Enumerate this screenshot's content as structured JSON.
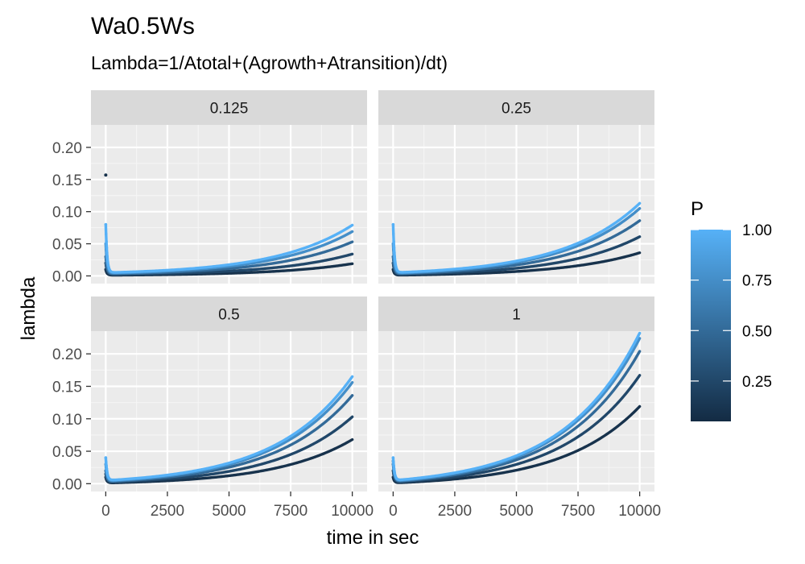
{
  "chart_data": {
    "type": "scatter",
    "title": "Wa0.5Ws",
    "subtitle": "Lambda=1/Atotal+(Agrowth+Atransition)/dt)",
    "xlabel": "time in sec",
    "ylabel": "lambda",
    "xlim": [
      -600,
      10600
    ],
    "ylim": [
      -0.012,
      0.235
    ],
    "x_ticks": [
      0,
      2500,
      5000,
      7500,
      10000
    ],
    "x_tick_labels": [
      "0",
      "2500",
      "5000",
      "7500",
      "10000"
    ],
    "y_ticks": [
      0,
      0.05,
      0.1,
      0.15,
      0.2
    ],
    "y_tick_labels": [
      "0.00",
      "0.05",
      "0.10",
      "0.15",
      "0.20"
    ],
    "grid": true,
    "legend": {
      "title": "P",
      "position": "right",
      "type": "colorbar",
      "ticks": [
        0.25,
        0.5,
        0.75,
        1.0
      ],
      "tick_labels": [
        "0.25",
        "0.50",
        "0.75",
        "1.00"
      ],
      "range": [
        0.05,
        1.0
      ],
      "low_color": "#132B43",
      "high_color": "#56B1F7"
    },
    "p_levels": [
      0.1,
      0.25,
      0.5,
      0.75,
      1.0
    ],
    "panels": [
      {
        "strip": "0.125",
        "series": [
          {
            "p": 0.1,
            "start": 0.01,
            "min": 0.001,
            "end": 0.019
          },
          {
            "p": 0.25,
            "start": 0.02,
            "min": 0.002,
            "end": 0.034
          },
          {
            "p": 0.5,
            "start": 0.03,
            "min": 0.003,
            "end": 0.053
          },
          {
            "p": 0.75,
            "start": 0.05,
            "min": 0.004,
            "end": 0.069
          },
          {
            "p": 1.0,
            "start": 0.08,
            "min": 0.005,
            "end": 0.079
          }
        ],
        "outliers": [
          {
            "x": 0,
            "y": 0.157,
            "p": 0.1
          }
        ]
      },
      {
        "strip": "0.25",
        "series": [
          {
            "p": 0.1,
            "start": 0.01,
            "min": 0.001,
            "end": 0.036
          },
          {
            "p": 0.25,
            "start": 0.02,
            "min": 0.002,
            "end": 0.061
          },
          {
            "p": 0.5,
            "start": 0.03,
            "min": 0.003,
            "end": 0.086
          },
          {
            "p": 0.75,
            "start": 0.05,
            "min": 0.004,
            "end": 0.105
          },
          {
            "p": 1.0,
            "start": 0.08,
            "min": 0.005,
            "end": 0.113
          }
        ],
        "outliers": []
      },
      {
        "strip": "0.5",
        "series": [
          {
            "p": 0.1,
            "start": 0.01,
            "min": 0.001,
            "end": 0.068
          },
          {
            "p": 0.25,
            "start": 0.015,
            "min": 0.002,
            "end": 0.103
          },
          {
            "p": 0.5,
            "start": 0.02,
            "min": 0.003,
            "end": 0.136
          },
          {
            "p": 0.75,
            "start": 0.03,
            "min": 0.004,
            "end": 0.156
          },
          {
            "p": 1.0,
            "start": 0.04,
            "min": 0.005,
            "end": 0.165
          }
        ],
        "outliers": []
      },
      {
        "strip": "1",
        "series": [
          {
            "p": 0.1,
            "start": 0.01,
            "min": 0.001,
            "end": 0.119
          },
          {
            "p": 0.25,
            "start": 0.02,
            "min": 0.002,
            "end": 0.167
          },
          {
            "p": 0.5,
            "start": 0.03,
            "min": 0.003,
            "end": 0.204
          },
          {
            "p": 0.75,
            "start": 0.035,
            "min": 0.004,
            "end": 0.224
          },
          {
            "p": 1.0,
            "start": 0.04,
            "min": 0.005,
            "end": 0.232
          }
        ],
        "outliers": []
      }
    ]
  }
}
